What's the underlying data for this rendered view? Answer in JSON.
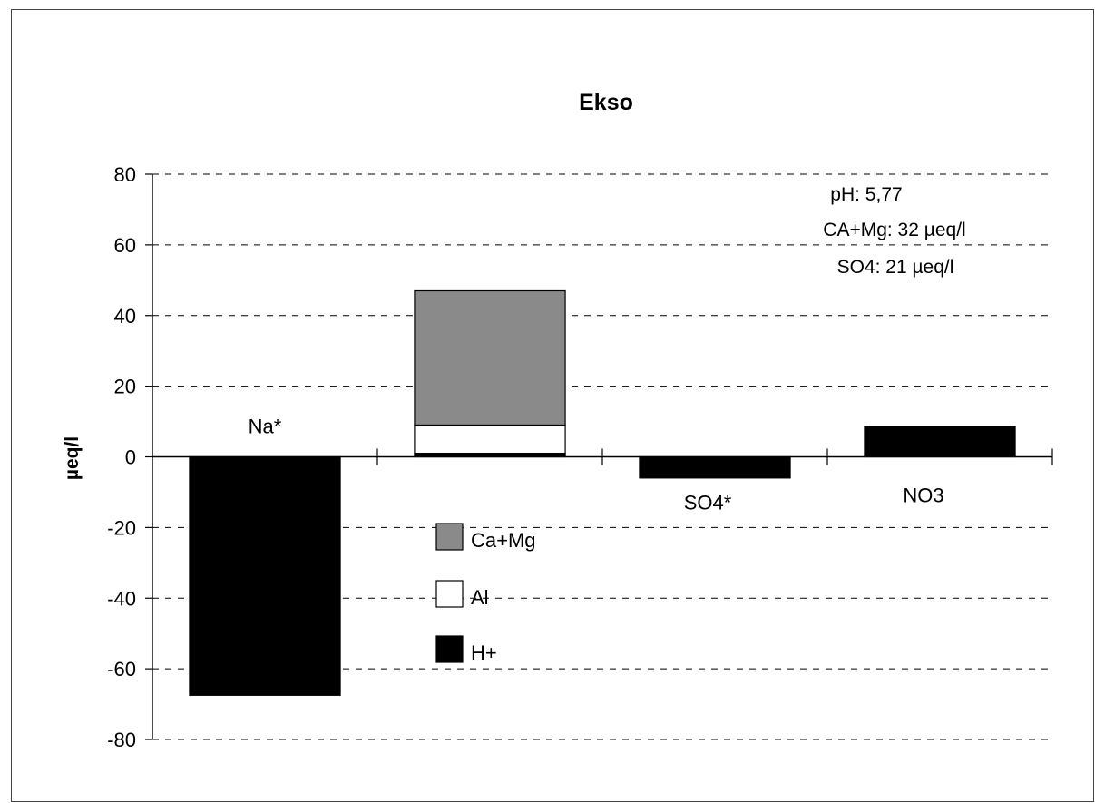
{
  "chart_data": {
    "type": "bar",
    "title": "Ekso",
    "xlabel": "",
    "ylabel": "µeq/l",
    "ylim": [
      -80,
      80
    ],
    "yticks": [
      80,
      60,
      40,
      20,
      0,
      -20,
      -40,
      -60,
      -80
    ],
    "grid": true,
    "categories": [
      "Na*",
      "",
      "SO4*",
      "NO3"
    ],
    "stacked_category_index": 1,
    "series": [
      {
        "name": "H+",
        "color": "#000000",
        "values": [
          -67.5,
          1,
          -6,
          8.5
        ]
      },
      {
        "name": "Al",
        "color": "#ffffff",
        "values": [
          0,
          8,
          0,
          0
        ]
      },
      {
        "name": "Ca+Mg",
        "color": "#8a8a8a",
        "values": [
          0,
          38,
          0,
          0
        ]
      }
    ],
    "legend": {
      "placement": "center-left",
      "entries": [
        "Ca+Mg",
        "Al",
        "H+"
      ]
    },
    "annotations": [
      "pH: 5,77",
      "CA+Mg: 32 µeq/l",
      "SO4: 21 µeq/l"
    ]
  }
}
